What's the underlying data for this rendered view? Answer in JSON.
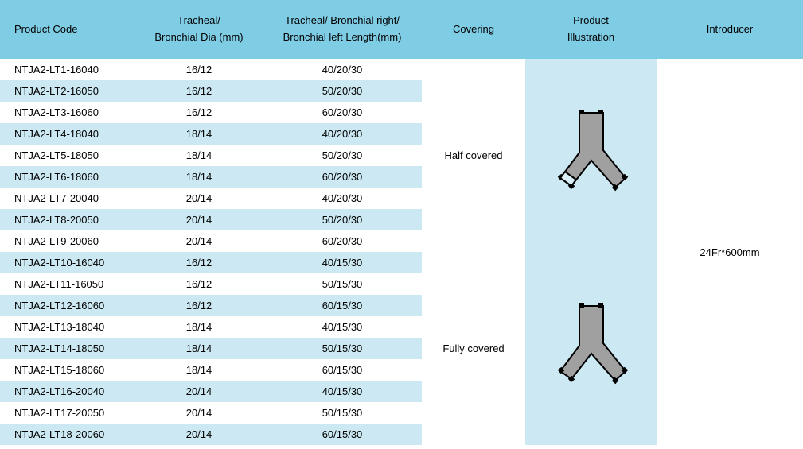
{
  "colors": {
    "header_bg": "#7fcce5",
    "stripe_bg": "#cce9f3",
    "white": "#ffffff",
    "stent_fill": "#a0a0a0",
    "stent_stroke": "#000000",
    "stent_light": "#d9eef6"
  },
  "headers": {
    "code": "Product Code",
    "dia": "Tracheal/\nBronchial Dia (mm)",
    "len": "Tracheal/ Bronchial right/\nBronchial left Length(mm)",
    "covering": "Covering",
    "illustration": "Product\nIllustration",
    "introducer": "Introducer"
  },
  "rows": [
    {
      "code": "NTJA2-LT1-16040",
      "dia": "16/12",
      "len": "40/20/30"
    },
    {
      "code": "NTJA2-LT2-16050",
      "dia": "16/12",
      "len": "50/20/30"
    },
    {
      "code": "NTJA2-LT3-16060",
      "dia": "16/12",
      "len": "60/20/30"
    },
    {
      "code": "NTJA2-LT4-18040",
      "dia": "18/14",
      "len": "40/20/30"
    },
    {
      "code": "NTJA2-LT5-18050",
      "dia": "18/14",
      "len": "50/20/30"
    },
    {
      "code": "NTJA2-LT6-18060",
      "dia": "18/14",
      "len": "60/20/30"
    },
    {
      "code": "NTJA2-LT7-20040",
      "dia": "20/14",
      "len": "40/20/30"
    },
    {
      "code": "NTJA2-LT8-20050",
      "dia": "20/14",
      "len": "50/20/30"
    },
    {
      "code": "NTJA2-LT9-20060",
      "dia": "20/14",
      "len": "60/20/30"
    },
    {
      "code": "NTJA2-LT10-16040",
      "dia": "16/12",
      "len": "40/15/30"
    },
    {
      "code": "NTJA2-LT11-16050",
      "dia": "16/12",
      "len": "50/15/30"
    },
    {
      "code": "NTJA2-LT12-16060",
      "dia": "16/12",
      "len": "60/15/30"
    },
    {
      "code": "NTJA2-LT13-18040",
      "dia": "18/14",
      "len": "40/15/30"
    },
    {
      "code": "NTJA2-LT14-18050",
      "dia": "18/14",
      "len": "50/15/30"
    },
    {
      "code": "NTJA2-LT15-18060",
      "dia": "18/14",
      "len": "60/15/30"
    },
    {
      "code": "NTJA2-LT16-20040",
      "dia": "20/14",
      "len": "40/15/30"
    },
    {
      "code": "NTJA2-LT17-20050",
      "dia": "20/14",
      "len": "50/15/30"
    },
    {
      "code": "NTJA2-LT18-20060",
      "dia": "20/14",
      "len": "60/15/30"
    }
  ],
  "covering": {
    "top": "Half covered",
    "bottom": "Fully covered"
  },
  "introducer": "24Fr*600mm",
  "illustration": {
    "type": "y-stent",
    "variants": [
      "half-covered",
      "fully-covered"
    ]
  }
}
